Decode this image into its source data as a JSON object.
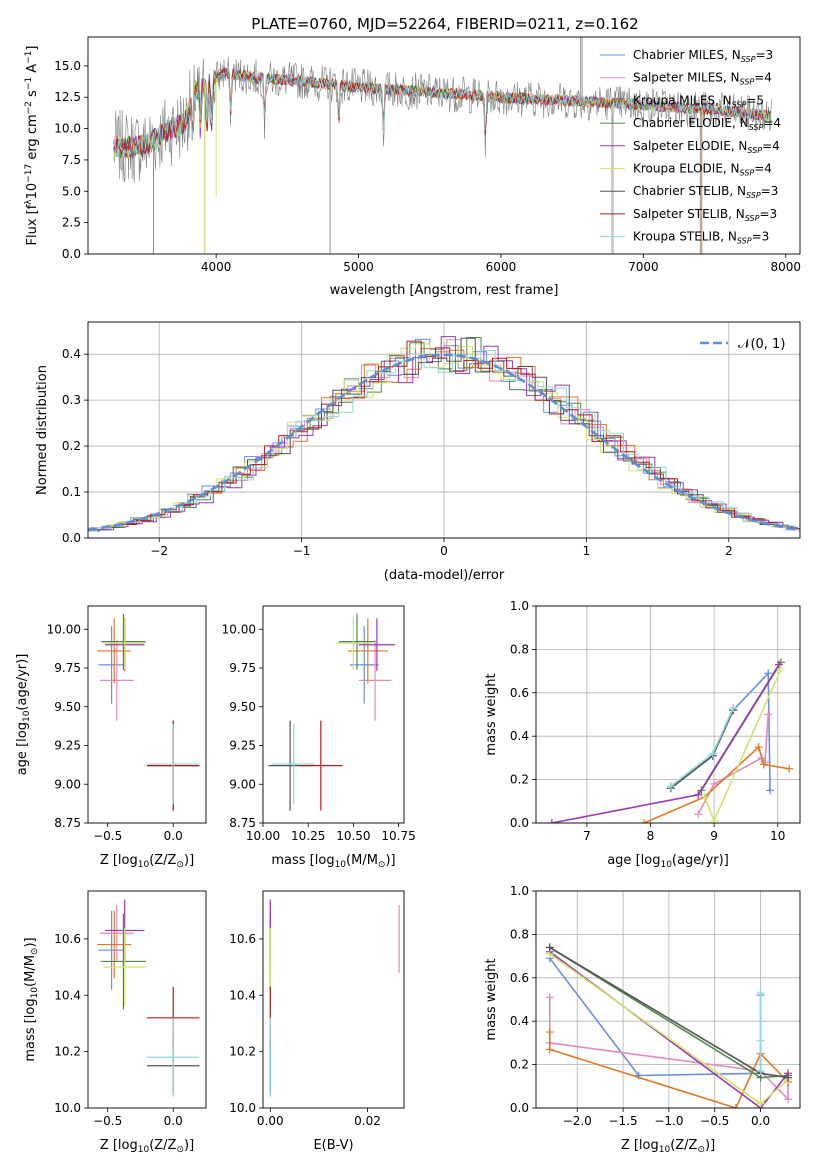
{
  "figure_title": "PLATE=0760, MJD=52264, FIBERID=0211, z=0.162",
  "colors": {
    "Chabrier MILES": "#6a8fdf",
    "Salpeter MILES": "#e58ac0",
    "Kroupa MILES": "#e07a25",
    "Chabrier ELODIE": "#4f8a4b",
    "Salpeter ELODIE": "#9e38b5",
    "Kroupa ELODIE": "#cfe56b",
    "Chabrier STELIB": "#555555",
    "Salpeter STELIB": "#b51c1c",
    "Kroupa STELIB": "#8fd9d9",
    "observed": "#808080",
    "gaussian": "#5b8fd6",
    "grid": "#b0b0b0"
  },
  "chart_data": [
    {
      "id": "spectrum",
      "type": "line",
      "xlabel": "wavelength [Angstrom, rest frame]",
      "ylabel_parts": [
        "Flux [f",
        "λ",
        "10",
        "−17",
        " erg cm",
        "−2",
        " s",
        "−1",
        " A",
        "−1",
        "]"
      ],
      "xlim": [
        3100,
        8100
      ],
      "ylim": [
        0,
        17.3
      ],
      "xticks": [
        4000,
        5000,
        6000,
        7000,
        8000
      ],
      "yticks": [
        0.0,
        2.5,
        5.0,
        7.5,
        10.0,
        12.5,
        15.0
      ],
      "ytick_labels": [
        "0.0",
        "2.5",
        "5.0",
        "7.5",
        "10.0",
        "12.5",
        "15.0"
      ],
      "grid": false,
      "legend_position": "right",
      "legend": [
        {
          "name": "Chabrier MILES",
          "nssp": "3"
        },
        {
          "name": "Salpeter MILES",
          "nssp": "4"
        },
        {
          "name": "Kroupa MILES",
          "nssp": "5"
        },
        {
          "name": "Chabrier ELODIE",
          "nssp": "4"
        },
        {
          "name": "Salpeter ELODIE",
          "nssp": "4"
        },
        {
          "name": "Kroupa ELODIE",
          "nssp": "4"
        },
        {
          "name": "Chabrier STELIB",
          "nssp": "3"
        },
        {
          "name": "Salpeter STELIB",
          "nssp": "3"
        },
        {
          "name": "Kroupa STELIB",
          "nssp": "3"
        }
      ],
      "continuum": [
        [
          3280,
          8.5
        ],
        [
          3500,
          8.6
        ],
        [
          3650,
          9.8
        ],
        [
          3780,
          10.5
        ],
        [
          3850,
          13.0
        ],
        [
          3950,
          13.5
        ],
        [
          4050,
          14.5
        ],
        [
          4300,
          14.0
        ],
        [
          4600,
          13.8
        ],
        [
          5000,
          13.3
        ],
        [
          5500,
          12.9
        ],
        [
          6000,
          12.5
        ],
        [
          6500,
          12.2
        ],
        [
          7000,
          11.9
        ],
        [
          7500,
          11.5
        ],
        [
          7900,
          11.0
        ]
      ],
      "observed_spikes": [
        [
          6560,
          17.3
        ],
        [
          6570,
          17.3
        ],
        [
          4800,
          0
        ],
        [
          3920,
          0
        ],
        [
          6780,
          0
        ],
        [
          7400,
          0
        ]
      ],
      "model_drops": [
        {
          "series": "Kroupa MILES",
          "x": 3560,
          "y": 0
        },
        {
          "series": "Kroupa MILES",
          "x": 7410,
          "y": 0
        },
        {
          "series": "Kroupa ELODIE",
          "x": 3920,
          "y": 0
        },
        {
          "series": "Kroupa ELODIE",
          "x": 4000,
          "y": 4.5
        },
        {
          "series": "Kroupa ELODIE",
          "x": 6790,
          "y": 0
        }
      ]
    },
    {
      "id": "residuals",
      "type": "histogram",
      "xlabel": "(data-model)/error",
      "ylabel": "Normed distribution",
      "xlim": [
        -2.5,
        2.5
      ],
      "ylim": [
        0,
        0.47
      ],
      "xticks": [
        -2,
        -1,
        0,
        1,
        2
      ],
      "xtick_labels": [
        "−2",
        "−1",
        "0",
        "1",
        "2"
      ],
      "yticks": [
        0.0,
        0.1,
        0.2,
        0.3,
        0.4
      ],
      "ytick_labels": [
        "0.0",
        "0.1",
        "0.2",
        "0.3",
        "0.4"
      ],
      "grid": true,
      "legend_position": "top-right",
      "legend_label": "𝒩(0, 1)",
      "gaussian": {
        "mean": 0,
        "sigma": 1
      }
    },
    {
      "id": "age-vs-Z",
      "type": "scatter",
      "xlabel_parts": [
        "Z [log",
        "10",
        "(Z/Z",
        "⊙",
        ")]"
      ],
      "ylabel_parts": [
        "age  [log",
        "10",
        "(age/yr)]"
      ],
      "xlim": [
        -0.65,
        0.25
      ],
      "ylim": [
        8.75,
        10.15
      ],
      "xticks": [
        -0.5,
        0.0
      ],
      "xtick_labels": [
        "−0.5",
        "0.0"
      ],
      "yticks": [
        8.75,
        9.0,
        9.25,
        9.5,
        9.75,
        10.0
      ],
      "ytick_labels": [
        "8.75",
        "9.00",
        "9.25",
        "9.50",
        "9.75",
        "10.00"
      ],
      "grid": false,
      "points": [
        {
          "series": "Chabrier MILES",
          "x": -0.47,
          "xerr": 0.1,
          "y": 9.77,
          "yerr": 0.25
        },
        {
          "series": "Salpeter MILES",
          "x": -0.43,
          "xerr": 0.13,
          "y": 9.67,
          "yerr": 0.26
        },
        {
          "series": "Kroupa MILES",
          "x": -0.45,
          "xerr": 0.13,
          "y": 9.86,
          "yerr": 0.21
        },
        {
          "series": "Chabrier ELODIE",
          "x": -0.38,
          "xerr": 0.17,
          "y": 9.92,
          "yerr": 0.18
        },
        {
          "series": "Salpeter ELODIE",
          "x": -0.37,
          "xerr": 0.15,
          "y": 9.9,
          "yerr": 0.17
        },
        {
          "series": "Kroupa ELODIE",
          "x": -0.37,
          "xerr": 0.16,
          "y": 9.91,
          "yerr": 0.17
        },
        {
          "series": "Chabrier STELIB",
          "x": 0.0,
          "xerr": 0.2,
          "y": 9.12,
          "yerr": 0.29
        },
        {
          "series": "Salpeter STELIB",
          "x": 0.0,
          "xerr": 0.2,
          "y": 9.12,
          "yerr": 0.29
        },
        {
          "series": "Kroupa STELIB",
          "x": 0.0,
          "xerr": 0.2,
          "y": 9.13,
          "yerr": 0.26
        }
      ]
    },
    {
      "id": "age-vs-mass",
      "type": "scatter",
      "xlabel_parts": [
        "mass [log",
        "10",
        "(M/M",
        "⊙",
        ")]"
      ],
      "xlim": [
        10.0,
        10.78
      ],
      "ylim": [
        8.75,
        10.15
      ],
      "xticks": [
        10.0,
        10.25,
        10.5,
        10.75
      ],
      "xtick_labels": [
        "10.00",
        "10.25",
        "10.50",
        "10.75"
      ],
      "yticks": [
        8.75,
        9.0,
        9.25,
        9.5,
        9.75,
        10.0
      ],
      "ytick_labels": [
        "8.75",
        "9.00",
        "9.25",
        "9.50",
        "9.75",
        "10.00"
      ],
      "grid": false,
      "points": [
        {
          "series": "Chabrier MILES",
          "x": 10.56,
          "xerr": 0.08,
          "y": 9.77,
          "yerr": 0.25
        },
        {
          "series": "Salpeter MILES",
          "x": 10.62,
          "xerr": 0.09,
          "y": 9.67,
          "yerr": 0.26
        },
        {
          "series": "Kroupa MILES",
          "x": 10.58,
          "xerr": 0.11,
          "y": 9.86,
          "yerr": 0.21
        },
        {
          "series": "Chabrier ELODIE",
          "x": 10.52,
          "xerr": 0.1,
          "y": 9.92,
          "yerr": 0.18
        },
        {
          "series": "Salpeter ELODIE",
          "x": 10.63,
          "xerr": 0.1,
          "y": 9.9,
          "yerr": 0.17
        },
        {
          "series": "Kroupa ELODIE",
          "x": 10.5,
          "xerr": 0.1,
          "y": 9.91,
          "yerr": 0.17
        },
        {
          "series": "Chabrier STELIB",
          "x": 10.15,
          "xerr": 0.12,
          "y": 9.12,
          "yerr": 0.29
        },
        {
          "series": "Salpeter STELIB",
          "x": 10.32,
          "xerr": 0.12,
          "y": 9.12,
          "yerr": 0.29
        },
        {
          "series": "Kroupa STELIB",
          "x": 10.17,
          "xerr": 0.12,
          "y": 9.13,
          "yerr": 0.26
        }
      ]
    },
    {
      "id": "mass-weight-vs-age",
      "type": "line",
      "xlabel_parts": [
        "age  [log",
        "10",
        "(age/yr)]"
      ],
      "ylabel": "mass weight",
      "xlim": [
        6.2,
        10.35
      ],
      "ylim": [
        0,
        1.0
      ],
      "xticks": [
        7,
        8,
        9,
        10
      ],
      "yticks": [
        0.0,
        0.2,
        0.4,
        0.6,
        0.8,
        1.0
      ],
      "ytick_labels": [
        "0.0",
        "0.2",
        "0.4",
        "0.6",
        "0.8",
        "1.0"
      ],
      "grid": true,
      "series": [
        {
          "name": "Chabrier MILES",
          "points": [
            [
              8.32,
              0.17
            ],
            [
              8.98,
              0.31
            ],
            [
              9.3,
              0.52
            ],
            [
              9.85,
              0.69
            ],
            [
              9.88,
              0.15
            ]
          ]
        },
        {
          "name": "Salpeter MILES",
          "points": [
            [
              8.75,
              0.04
            ],
            [
              9.0,
              0.18
            ],
            [
              9.75,
              0.3
            ],
            [
              9.8,
              0.28
            ],
            [
              9.85,
              0.5
            ]
          ]
        },
        {
          "name": "Kroupa MILES",
          "points": [
            [
              7.9,
              0.0
            ],
            [
              8.85,
              0.12
            ],
            [
              9.7,
              0.35
            ],
            [
              9.78,
              0.27
            ],
            [
              10.18,
              0.25
            ]
          ]
        },
        {
          "name": "Chabrier ELODIE",
          "points": [
            [
              8.8,
              0.15
            ],
            [
              10.05,
              0.74
            ]
          ]
        },
        {
          "name": "Salpeter ELODIE",
          "points": [
            [
              6.45,
              0.0
            ],
            [
              8.75,
              0.13
            ],
            [
              10.02,
              0.73
            ]
          ]
        },
        {
          "name": "Kroupa ELODIE",
          "points": [
            [
              8.85,
              0.12
            ],
            [
              9.0,
              0.01
            ],
            [
              10.05,
              0.71
            ]
          ]
        },
        {
          "name": "Chabrier STELIB",
          "points": [
            [
              8.32,
              0.16
            ],
            [
              8.98,
              0.31
            ],
            [
              9.3,
              0.52
            ]
          ]
        },
        {
          "name": "Salpeter STELIB",
          "points": []
        },
        {
          "name": "Kroupa STELIB",
          "points": [
            [
              8.32,
              0.17
            ],
            [
              8.98,
              0.32
            ],
            [
              9.3,
              0.53
            ]
          ]
        }
      ]
    },
    {
      "id": "mass-vs-Z",
      "type": "scatter",
      "xlabel_parts": [
        "Z [log",
        "10",
        "(Z/Z",
        "⊙",
        ")]"
      ],
      "ylabel_parts": [
        "mass [log",
        "10",
        "(M/M",
        "⊙",
        ")]"
      ],
      "xlim": [
        -0.65,
        0.25
      ],
      "ylim": [
        10.0,
        10.77
      ],
      "xticks": [
        -0.5,
        0.0
      ],
      "xtick_labels": [
        "−0.5",
        "0.0"
      ],
      "yticks": [
        10.0,
        10.2,
        10.4,
        10.6
      ],
      "ytick_labels": [
        "10.0",
        "10.2",
        "10.4",
        "10.6"
      ],
      "grid": false,
      "points": [
        {
          "series": "Chabrier MILES",
          "x": -0.47,
          "xerr": 0.1,
          "y": 10.56,
          "yerr": 0.14
        },
        {
          "series": "Salpeter MILES",
          "x": -0.43,
          "xerr": 0.13,
          "y": 10.62,
          "yerr": 0.1
        },
        {
          "series": "Kroupa MILES",
          "x": -0.45,
          "xerr": 0.13,
          "y": 10.58,
          "yerr": 0.12
        },
        {
          "series": "Chabrier ELODIE",
          "x": -0.38,
          "xerr": 0.17,
          "y": 10.52,
          "yerr": 0.17
        },
        {
          "series": "Salpeter ELODIE",
          "x": -0.37,
          "xerr": 0.15,
          "y": 10.63,
          "yerr": 0.11
        },
        {
          "series": "Kroupa ELODIE",
          "x": -0.37,
          "xerr": 0.16,
          "y": 10.5,
          "yerr": 0.14
        },
        {
          "series": "Chabrier STELIB",
          "x": 0.0,
          "xerr": 0.2,
          "y": 10.15,
          "yerr": 0.1
        },
        {
          "series": "Salpeter STELIB",
          "x": 0.0,
          "xerr": 0.2,
          "y": 10.32,
          "yerr": 0.11
        },
        {
          "series": "Kroupa STELIB",
          "x": 0.0,
          "xerr": 0.2,
          "y": 10.18,
          "yerr": 0.14
        }
      ]
    },
    {
      "id": "mass-vs-ebv",
      "type": "scatter",
      "xlabel": "E(B-V)",
      "xlim": [
        -0.0015,
        0.0275
      ],
      "ylim": [
        10.0,
        10.77
      ],
      "xticks": [
        0.0,
        0.02
      ],
      "xtick_labels": [
        "0.00",
        "0.02"
      ],
      "yticks": [
        10.0,
        10.2,
        10.4,
        10.6
      ],
      "ytick_labels": [
        "10.0",
        "10.2",
        "10.4",
        "10.6"
      ],
      "grid": false,
      "points": [
        {
          "series": "Chabrier MILES",
          "x": 0.0,
          "xerr": 0,
          "y": 10.56,
          "yerr": 0.14
        },
        {
          "series": "Salpeter MILES",
          "x": 0.0,
          "xerr": 0,
          "y": 10.62,
          "yerr": 0.1
        },
        {
          "series": "Salpeter MILES",
          "x": 0.0265,
          "xerr": 0,
          "y": 10.6,
          "yerr": 0.12
        },
        {
          "series": "Kroupa MILES",
          "x": 0.0,
          "xerr": 0,
          "y": 10.58,
          "yerr": 0.12
        },
        {
          "series": "Chabrier ELODIE",
          "x": 0.0,
          "xerr": 0,
          "y": 10.52,
          "yerr": 0.17
        },
        {
          "series": "Salpeter ELODIE",
          "x": 0.0,
          "xerr": 0,
          "y": 10.63,
          "yerr": 0.11
        },
        {
          "series": "Kroupa ELODIE",
          "x": 0.0,
          "xerr": 0,
          "y": 10.5,
          "yerr": 0.14
        },
        {
          "series": "Chabrier STELIB",
          "x": 0.0,
          "xerr": 0,
          "y": 10.15,
          "yerr": 0.1
        },
        {
          "series": "Salpeter STELIB",
          "x": 0.0,
          "xerr": 0,
          "y": 10.32,
          "yerr": 0.11
        },
        {
          "series": "Kroupa STELIB",
          "x": 0.0,
          "xerr": 0,
          "y": 10.18,
          "yerr": 0.14
        }
      ]
    },
    {
      "id": "mass-weight-vs-Z",
      "type": "line",
      "xlabel_parts": [
        "Z [log",
        "10",
        "(Z/Z",
        "⊙",
        ")]"
      ],
      "ylabel": "mass weight",
      "xlim": [
        -2.45,
        0.43
      ],
      "ylim": [
        0,
        1.0
      ],
      "xticks": [
        -2.0,
        -1.5,
        -1.0,
        -0.5,
        0.0
      ],
      "xtick_labels": [
        "−2.0",
        "−1.5",
        "−1.0",
        "−0.5",
        "0.0"
      ],
      "yticks": [
        0.0,
        0.2,
        0.4,
        0.6,
        0.8,
        1.0
      ],
      "ytick_labels": [
        "0.0",
        "0.2",
        "0.4",
        "0.6",
        "0.8",
        "1.0"
      ],
      "grid": true,
      "series": [
        {
          "name": "Chabrier MILES",
          "points": [
            [
              -2.3,
              0.69
            ],
            [
              -1.33,
              0.15
            ],
            [
              0.0,
              0.16
            ],
            [
              0.0,
              0.52
            ]
          ]
        },
        {
          "name": "Salpeter MILES",
          "points": [
            [
              -2.3,
              0.51
            ],
            [
              -2.3,
              0.3
            ],
            [
              0.0,
              0.17
            ],
            [
              0.3,
              0.04
            ],
            [
              0.3,
              0.15
            ]
          ]
        },
        {
          "name": "Kroupa MILES",
          "points": [
            [
              -2.3,
              0.35
            ],
            [
              -2.3,
              0.27
            ],
            [
              -0.27,
              0.0
            ],
            [
              0.0,
              0.25
            ],
            [
              0.3,
              0.12
            ]
          ]
        },
        {
          "name": "Chabrier ELODIE",
          "points": [
            [
              -2.3,
              0.74
            ],
            [
              0.0,
              0.14
            ],
            [
              0.3,
              0.15
            ]
          ]
        },
        {
          "name": "Salpeter ELODIE",
          "points": [
            [
              -2.3,
              0.72
            ],
            [
              0.0,
              0.0
            ],
            [
              0.3,
              0.16
            ]
          ]
        },
        {
          "name": "Kroupa ELODIE",
          "points": [
            [
              -2.3,
              0.71
            ],
            [
              0.0,
              0.02
            ],
            [
              0.3,
              0.13
            ]
          ]
        },
        {
          "name": "Chabrier STELIB",
          "points": [
            [
              -2.3,
              0.74
            ],
            [
              0.0,
              0.16
            ],
            [
              0.3,
              0.14
            ]
          ]
        },
        {
          "name": "Salpeter STELIB",
          "points": []
        },
        {
          "name": "Kroupa STELIB",
          "points": [
            [
              0.0,
              0.53
            ],
            [
              0.0,
              0.31
            ],
            [
              0.0,
              0.17
            ]
          ]
        }
      ]
    }
  ]
}
